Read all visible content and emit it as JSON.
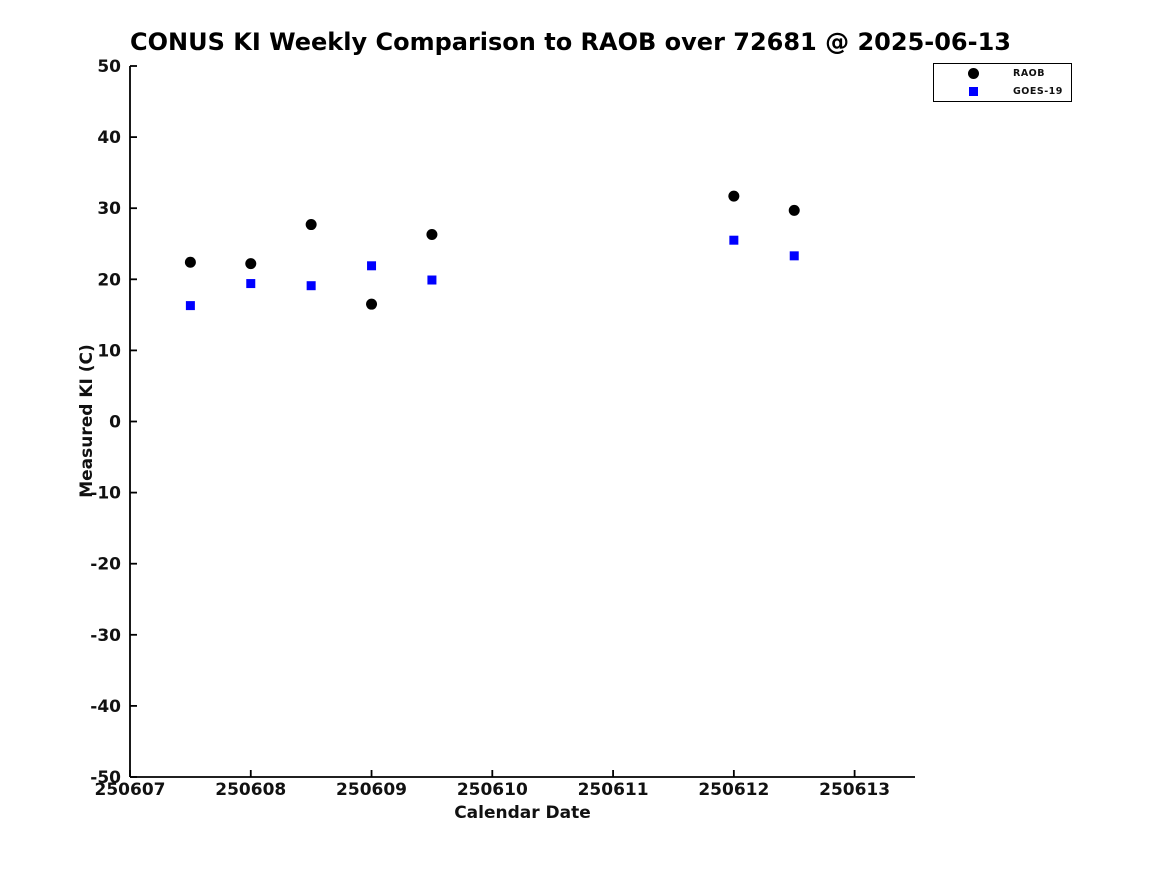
{
  "page": {
    "background": "#ffffff"
  },
  "chart_data": {
    "type": "scatter",
    "title": "CONUS KI Weekly Comparison to RAOB over 72681 @ 2025-06-13",
    "xlabel": "Calendar Date",
    "ylabel": "Measured KI (C)",
    "xlim": [
      250607,
      250613.5
    ],
    "ylim": [
      -50,
      50
    ],
    "x_ticks": [
      250607,
      250608,
      250609,
      250610,
      250611,
      250612,
      250613
    ],
    "x_tick_labels": [
      "250607",
      "250608",
      "250609",
      "250610",
      "250611",
      "250612",
      "250613"
    ],
    "y_ticks": [
      -50,
      -40,
      -30,
      -20,
      -10,
      0,
      10,
      20,
      30,
      40,
      50
    ],
    "y_tick_labels": [
      "-50",
      "-40",
      "-30",
      "-20",
      "-10",
      "0",
      "10",
      "20",
      "30",
      "40",
      "50"
    ],
    "grid": false,
    "legend_position": "top-right",
    "axis_color": "#000000",
    "tick_label_color": "#111111",
    "series": [
      {
        "name": "RAOB",
        "marker": "circle",
        "color": "#000000",
        "x": [
          250607.5,
          250608.0,
          250608.5,
          250609.0,
          250609.5,
          250612.0,
          250612.5
        ],
        "y": [
          22.4,
          22.2,
          27.7,
          16.5,
          26.3,
          31.7,
          29.7
        ]
      },
      {
        "name": "GOES-19",
        "marker": "square",
        "color": "#0000ff",
        "x": [
          250607.5,
          250608.0,
          250608.5,
          250609.0,
          250609.5,
          250612.0,
          250612.5
        ],
        "y": [
          16.3,
          19.4,
          19.1,
          21.9,
          19.9,
          25.5,
          23.3
        ]
      }
    ]
  }
}
